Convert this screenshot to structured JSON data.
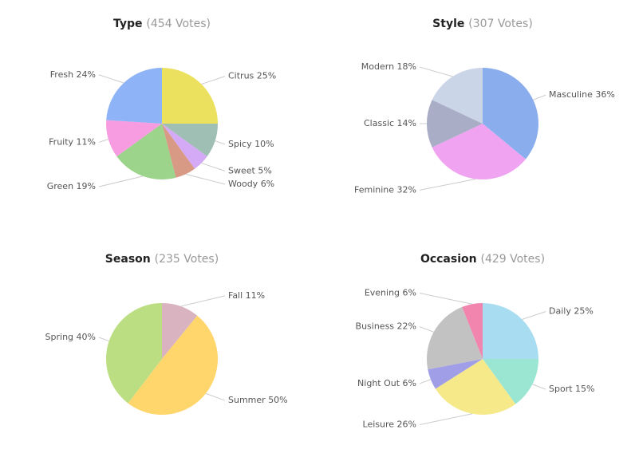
{
  "chart_data": [
    {
      "type": "pie",
      "title": "Type",
      "subtitle": "(454 Votes)",
      "categories": [
        "Citrus",
        "Spicy",
        "Sweet",
        "Woody",
        "Green",
        "Fruity",
        "Fresh"
      ],
      "values": [
        25,
        10,
        5,
        6,
        19,
        11,
        24
      ],
      "value_labels": [
        "25%",
        "10%",
        "5%",
        "6%",
        "19%",
        "11%",
        "24%"
      ],
      "colors": [
        "#ebe15f",
        "#9fbfb5",
        "#d4a9f5",
        "#d99a85",
        "#9bd48a",
        "#f79ce0",
        "#8fb3f7"
      ]
    },
    {
      "type": "pie",
      "title": "Style",
      "subtitle": "(307 Votes)",
      "categories": [
        "Masculine",
        "Feminine",
        "Classic",
        "Modern"
      ],
      "values": [
        36,
        32,
        14,
        18
      ],
      "value_labels": [
        "36%",
        "32%",
        "14%",
        "18%"
      ],
      "colors": [
        "#8aaeed",
        "#f0a3f0",
        "#a9aec6",
        "#cbd5e8"
      ]
    },
    {
      "type": "pie",
      "title": "Season",
      "subtitle": "(235 Votes)",
      "categories": [
        "Fall",
        "Summer",
        "Spring"
      ],
      "values": [
        11,
        50,
        40
      ],
      "value_labels": [
        "11%",
        "50%",
        "40%"
      ],
      "colors": [
        "#d9b3bf",
        "#ffd66b",
        "#bbde82"
      ]
    },
    {
      "type": "pie",
      "title": "Occasion",
      "subtitle": "(429 Votes)",
      "categories": [
        "Daily",
        "Sport",
        "Leisure",
        "Night Out",
        "Business",
        "Evening"
      ],
      "values": [
        25,
        15,
        26,
        6,
        22,
        6
      ],
      "value_labels": [
        "25%",
        "15%",
        "26%",
        "6%",
        "22%",
        "6%"
      ],
      "colors": [
        "#a8dcf0",
        "#9ae6d3",
        "#f5e98a",
        "#a09ee6",
        "#c2c2c2",
        "#f285ae"
      ]
    }
  ]
}
